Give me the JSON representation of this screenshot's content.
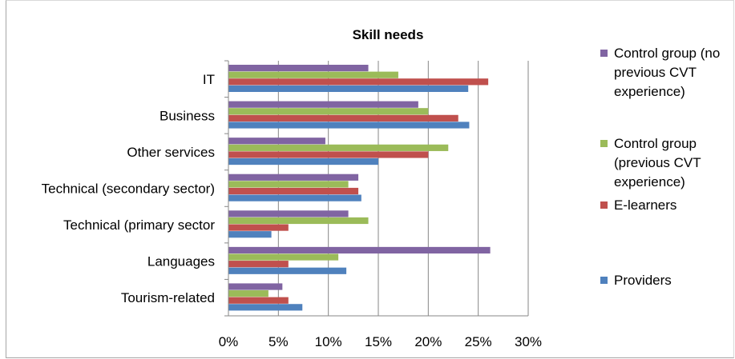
{
  "chart_data": {
    "type": "bar",
    "orientation": "horizontal",
    "title": "Skill needs",
    "xlabel": "",
    "ylabel": "",
    "xlim": [
      0,
      30
    ],
    "x_ticks": [
      "0%",
      "5%",
      "10%",
      "15%",
      "20%",
      "25%",
      "30%"
    ],
    "grid": "vertical",
    "legend_position": "right",
    "categories": [
      "IT",
      "Business",
      "Other services",
      "Technical (secondary sector)",
      "Technical (primary sector",
      "Languages",
      "Tourism-related"
    ],
    "series": [
      {
        "name": "Control group (no previous CVT experience)",
        "legend_lines": [
          "Control group (no",
          "previous CVT",
          "experience)"
        ],
        "color": "#8064a2",
        "values": [
          14.0,
          19.0,
          9.7,
          13.0,
          12.0,
          26.2,
          5.4
        ]
      },
      {
        "name": "Control group (previous CVT experience)",
        "legend_lines": [
          "Control group",
          "(previous CVT",
          "experience)"
        ],
        "color": "#9bbb59",
        "values": [
          17.0,
          20.0,
          22.0,
          12.0,
          14.0,
          11.0,
          4.0
        ]
      },
      {
        "name": "E-learners",
        "legend_lines": [
          "E-learners"
        ],
        "color": "#c0504d",
        "values": [
          26.0,
          23.0,
          20.0,
          13.0,
          6.0,
          6.0,
          6.0
        ]
      },
      {
        "name": "Providers",
        "legend_lines": [
          "Providers"
        ],
        "color": "#4f81bd",
        "values": [
          24.0,
          24.1,
          15.0,
          13.3,
          4.3,
          11.8,
          7.4
        ]
      }
    ]
  }
}
